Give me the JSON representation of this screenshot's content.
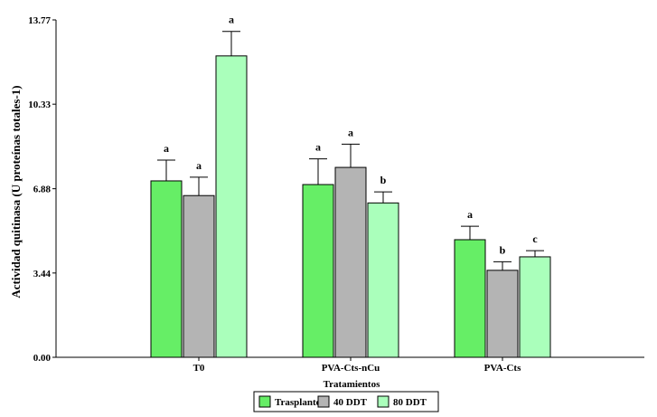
{
  "chart_data": {
    "type": "bar",
    "categories": [
      "T0",
      "PVA-Cts-nCu",
      "PVA-Cts"
    ],
    "series": [
      {
        "name": "Trasplante",
        "color": "#66ee66",
        "values": [
          7.2,
          7.05,
          4.8
        ],
        "errors": [
          0.85,
          1.05,
          0.55
        ],
        "labels": [
          "a",
          "a",
          "a"
        ]
      },
      {
        "name": "40 DDT",
        "color": "#b4b4b4",
        "values": [
          6.6,
          7.75,
          3.55
        ],
        "errors": [
          0.75,
          0.95,
          0.35
        ],
        "labels": [
          "a",
          "a",
          "b"
        ]
      },
      {
        "name": "80 DDT",
        "color": "#aaffbb",
        "values": [
          12.3,
          6.3,
          4.1
        ],
        "errors": [
          1.0,
          0.45,
          0.25
        ],
        "labels": [
          "a",
          "b",
          "c"
        ]
      }
    ],
    "yticks": [
      "0.00",
      "3.44",
      "6.88",
      "10.33",
      "13.77"
    ],
    "ylim": [
      0,
      13.77
    ],
    "ylabel": "Actividad quitinasa (U proteínas totales-1)",
    "xlabel": "Tratamientos",
    "legend_position": "bottom-center",
    "grid": false
  }
}
